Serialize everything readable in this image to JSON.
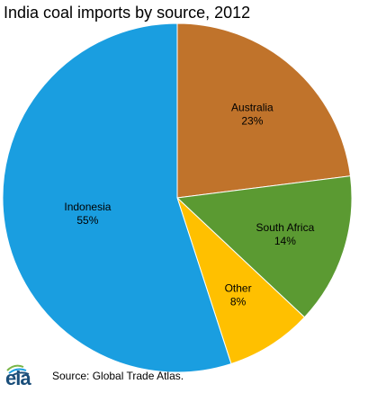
{
  "chart_data": {
    "type": "pie",
    "title": "India coal imports by source, 2012",
    "slices": [
      {
        "label": "Australia",
        "percent_label": "23%",
        "value": 23,
        "color": "#c0732b"
      },
      {
        "label": "South Africa",
        "percent_label": "14%",
        "value": 14,
        "color": "#5b9a32"
      },
      {
        "label": "Other",
        "percent_label": "8%",
        "value": 8,
        "color": "#ffc000"
      },
      {
        "label": "Indonesia",
        "percent_label": "55%",
        "value": 55,
        "color": "#1a9ee0"
      }
    ],
    "start_angle": "12 o'clock",
    "direction": "clockwise",
    "legend": "none"
  },
  "footer": {
    "logo_text": "eia",
    "source": "Source: Global Trade Atlas."
  }
}
